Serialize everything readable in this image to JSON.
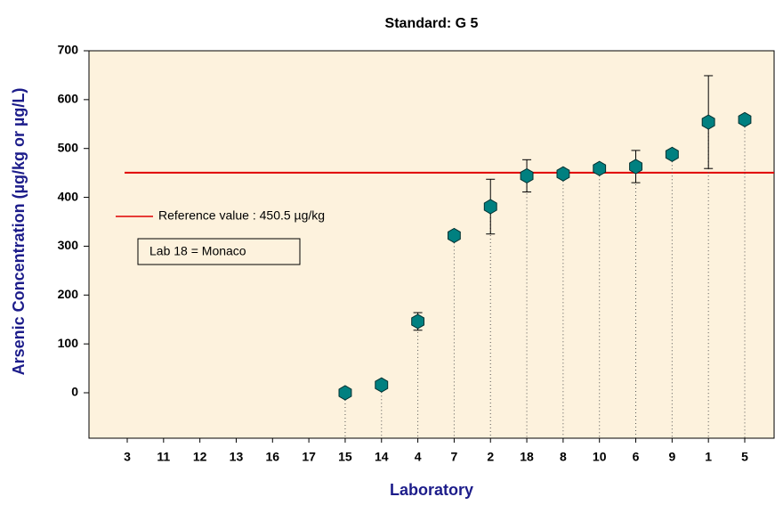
{
  "chart_data": {
    "type": "errorbar",
    "title": "Standard: G 5",
    "x_label": "Laboratory",
    "y_label": "Arsenic Concentration (µg/kg or µg/L)",
    "categories": [
      "3",
      "11",
      "12",
      "13",
      "16",
      "17",
      "15",
      "14",
      "4",
      "7",
      "2",
      "18",
      "8",
      "10",
      "6",
      "9",
      "1",
      "5"
    ],
    "values": [
      null,
      null,
      null,
      null,
      null,
      null,
      0,
      16,
      146,
      322,
      381,
      444,
      448,
      459,
      463,
      488,
      554,
      559
    ],
    "errors": [
      null,
      null,
      null,
      null,
      null,
      null,
      null,
      null,
      18,
      null,
      56,
      33,
      null,
      null,
      33,
      null,
      95,
      null
    ],
    "color": "#008080",
    "reference": {
      "value": 450.5,
      "label": "Reference value : 450.5 µg/kg",
      "color": "#e00000"
    },
    "annotation": "Lab 18 = Monaco",
    "ylim": [
      -93,
      700
    ],
    "yticks": [
      0,
      100,
      200,
      300,
      400,
      500,
      600,
      700
    ]
  }
}
